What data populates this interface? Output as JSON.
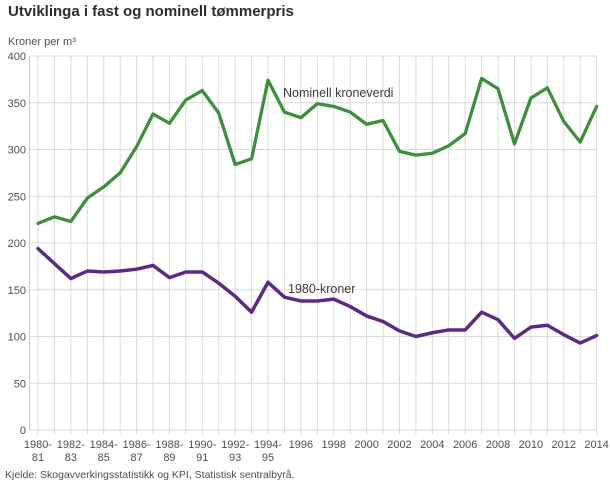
{
  "title": "Utviklinga i fast og nominell tømmerpris",
  "y_axis_unit": "Kroner per m³",
  "source": "Kjelde: Skogavverkingsstatistikk og KPI, Statistisk sentralbyrå.",
  "colors": {
    "nominal_line": "#3e8e3c",
    "real_line": "#5c2a82",
    "gridline": "#d9d9d9",
    "axis_border": "#c9c9c9",
    "tick_label": "#4d4d4d",
    "annotation_text": "#3a3a3a"
  },
  "chart_data": {
    "type": "line",
    "title": "Utviklinga i fast og nominell tømmerpris",
    "xlabel": "",
    "ylabel": "Kroner per m³",
    "ylim": [
      0,
      400
    ],
    "grid": "both",
    "legend_position": "inline-annotations",
    "y_ticks": [
      0,
      50,
      100,
      150,
      200,
      250,
      300,
      350,
      400
    ],
    "categories": [
      "1980-81",
      "1981-82",
      "1982-83",
      "1983-84",
      "1984-85",
      "1985-86",
      "1986-87",
      "1987-88",
      "1988-89",
      "1989-90",
      "1990-91",
      "1991-92",
      "1992-93",
      "1993-94",
      "1994-95",
      "1995-96",
      "1996",
      "1997",
      "1998",
      "1999",
      "2000",
      "2001",
      "2002",
      "2003",
      "2004",
      "2005",
      "2006",
      "2007",
      "2008",
      "2009",
      "2010",
      "2011",
      "2012",
      "2013",
      "2014"
    ],
    "x_tick_labels": [
      "1980-81",
      "1982-83",
      "1984-85",
      "1986-87",
      "1988-89",
      "1990-91",
      "1992-93",
      "1994-95",
      "1996",
      "1998",
      "2000",
      "2002",
      "2004",
      "2006",
      "2008",
      "2010",
      "2012",
      "2014"
    ],
    "series": [
      {
        "name": "Nominell kroneverdi",
        "color": "#3e8e3c",
        "values": [
          221,
          228,
          223,
          248,
          260,
          275,
          303,
          338,
          328,
          353,
          363,
          339,
          284,
          290,
          374,
          340,
          334,
          349,
          346,
          340,
          327,
          331,
          298,
          294,
          296,
          304,
          317,
          376,
          365,
          306,
          355,
          366,
          330,
          308,
          346
        ]
      },
      {
        "name": "1980-kroner",
        "color": "#5c2a82",
        "values": [
          194,
          178,
          162,
          170,
          169,
          170,
          172,
          176,
          163,
          169,
          169,
          157,
          143,
          126,
          158,
          142,
          138,
          138,
          140,
          132,
          122,
          116,
          106,
          100,
          104,
          107,
          107,
          126,
          118,
          98,
          110,
          112,
          102,
          93,
          101
        ]
      }
    ],
    "annotations": [
      {
        "text": "Nominell kroneverdi",
        "x": 283,
        "y": 97
      },
      {
        "text": "1980-kroner",
        "x": 288,
        "y": 293
      }
    ]
  }
}
